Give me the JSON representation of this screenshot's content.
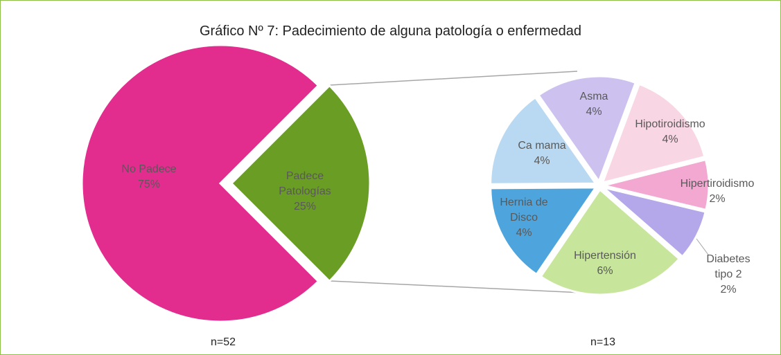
{
  "chart_data": [
    {
      "type": "pie",
      "title": "Gráfico Nº 7: Padecimiento de alguna patología o enfermedad",
      "categories": [
        "No Padece",
        "Padece Patologías"
      ],
      "values": [
        75,
        25
      ],
      "value_labels": [
        "75%",
        "25%"
      ],
      "colors": [
        "#e22d8f",
        "#6a9d23"
      ],
      "annotation": "n=52"
    },
    {
      "type": "pie",
      "categories": [
        "Asma",
        "Hipotiroidismo",
        "Hipertiroidismo",
        "Diabetes tipo 2",
        "Hipertensión",
        "Hernia de Disco",
        "Ca mama"
      ],
      "values": [
        4,
        4,
        2,
        2,
        6,
        4,
        4
      ],
      "value_labels": [
        "4%",
        "4%",
        "2%",
        "2%",
        "6%",
        "4%",
        "4%"
      ],
      "colors": [
        "#cdc2ef",
        "#f9d6e3",
        "#f2a8d1",
        "#b4a8eb",
        "#c7e69c",
        "#4ea4dd",
        "#b8d9f1"
      ],
      "annotation": "n=13"
    }
  ]
}
